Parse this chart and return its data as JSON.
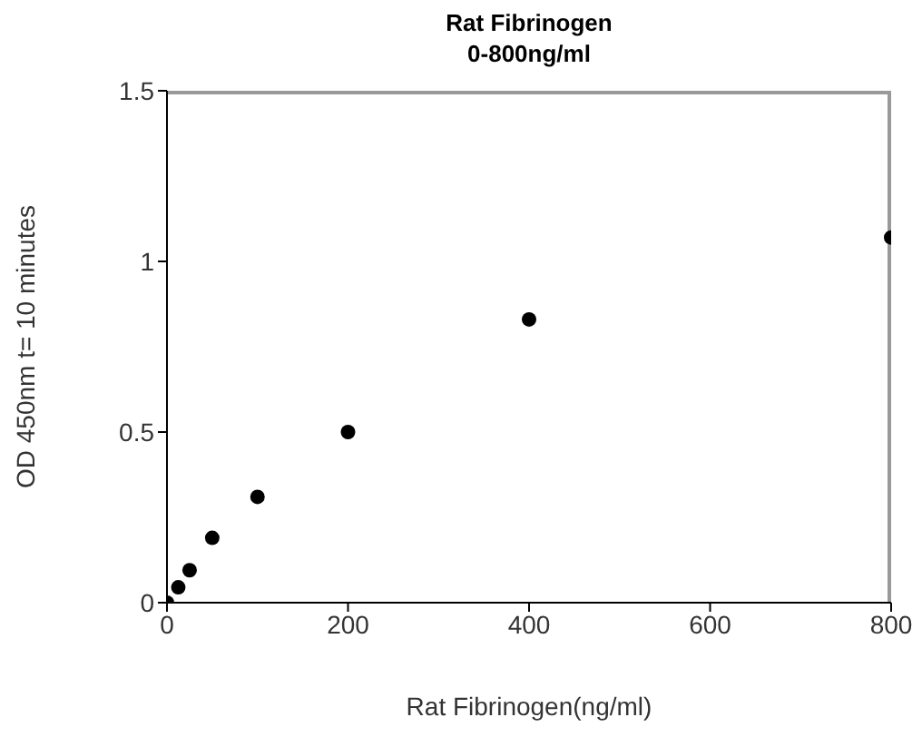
{
  "chart_data": {
    "type": "scatter",
    "title": "Rat Fibrinogen",
    "subtitle": "0-800ng/ml",
    "xlabel": "Rat Fibrinogen(ng/ml)",
    "ylabel": "OD 450nm t= 10 minutes",
    "x": [
      0,
      12.5,
      25,
      50,
      100,
      200,
      400,
      800
    ],
    "values": [
      0,
      0.045,
      0.095,
      0.19,
      0.31,
      0.5,
      0.83,
      1.07
    ],
    "color": "#000000",
    "marker": "circle",
    "xlim": [
      0,
      800
    ],
    "xticks": [
      0,
      200,
      400,
      600,
      800
    ],
    "ylim": [
      0,
      1.5
    ],
    "yticks": [
      0,
      0.5,
      1,
      1.5
    ],
    "grid": false,
    "legend": false
  }
}
